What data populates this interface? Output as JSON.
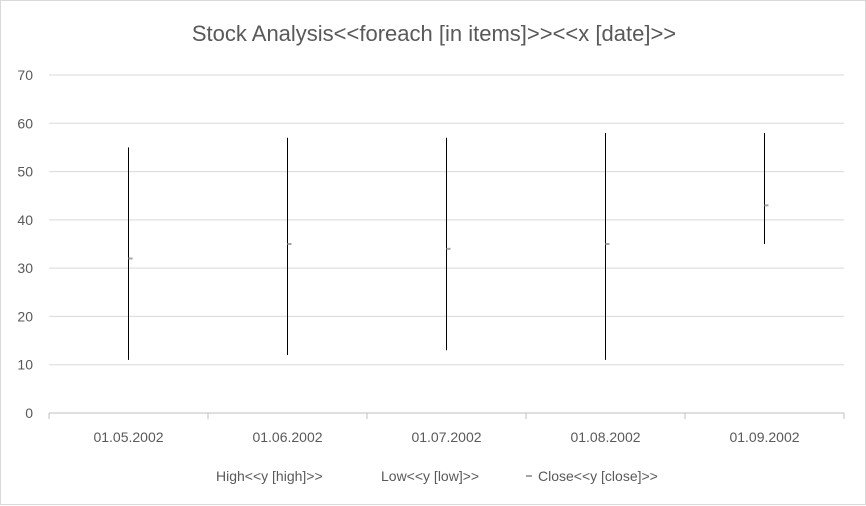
{
  "chart_data": {
    "type": "stock",
    "title": "Stock Analysis<<foreach [in items]>><<x [date]>>",
    "categories": [
      "01.05.2002",
      "01.06.2002",
      "01.07.2002",
      "01.08.2002",
      "01.09.2002"
    ],
    "series": [
      {
        "name": "High<<y [high]>>",
        "values": [
          55,
          57,
          57,
          58,
          58
        ]
      },
      {
        "name": "Low<<y [low]>>",
        "values": [
          11,
          12,
          13,
          11,
          35
        ]
      },
      {
        "name": "Close<<y [close]>>",
        "values": [
          32,
          35,
          34,
          35,
          43
        ]
      }
    ],
    "ylim": [
      0,
      70
    ],
    "yticks": [
      0,
      10,
      20,
      30,
      40,
      50,
      60,
      70
    ],
    "grid": true,
    "legend": "bottom",
    "colors": {
      "high_low_line": "#000000",
      "close_marker": "#a5a5a5",
      "gridline": "#d9d9d9",
      "text": "#595959"
    }
  }
}
